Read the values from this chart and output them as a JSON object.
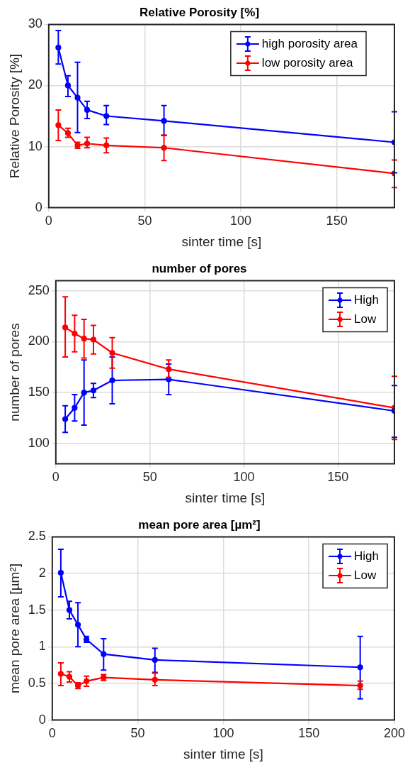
{
  "chart_data": [
    {
      "type": "line",
      "title": "Relative Porosity [%]",
      "xlabel": "sinter time [s]",
      "ylabel": "Relative Porosity [%]",
      "x": [
        5,
        10,
        15,
        20,
        30,
        60,
        180
      ],
      "xlim": [
        0,
        180
      ],
      "xticks": [
        0,
        50,
        100,
        150
      ],
      "ylim": [
        0,
        30
      ],
      "yticks": [
        0,
        10,
        20,
        30
      ],
      "grid": true,
      "legend": "top right",
      "marker": "circle",
      "line_style": "solid",
      "series": [
        {
          "name": "high porosity area",
          "color": "#0000ff",
          "values": [
            26.2,
            20,
            18,
            16,
            15,
            14.2,
            10.7
          ],
          "errors": [
            [
              23.5,
              29
            ],
            [
              18.2,
              21.6
            ],
            [
              12.3,
              23.8
            ],
            [
              14.6,
              17.4
            ],
            [
              13.6,
              16.7
            ],
            [
              11.8,
              16.7
            ],
            [
              5.7,
              15.7
            ]
          ]
        },
        {
          "name": "low porosity area",
          "color": "#ff0000",
          "values": [
            13.5,
            12.2,
            10.2,
            10.5,
            10.2,
            9.8,
            5.6
          ],
          "errors": [
            [
              11,
              16
            ],
            [
              11.5,
              13
            ],
            [
              9.7,
              10.7
            ],
            [
              9.8,
              11.5
            ],
            [
              9,
              11.4
            ],
            [
              7.7,
              11.9
            ],
            [
              3.3,
              7.8
            ]
          ]
        }
      ]
    },
    {
      "type": "line",
      "title": "number of pores",
      "xlabel": "sinter time [s]",
      "ylabel": "number of pores",
      "x": [
        5,
        10,
        15,
        20,
        30,
        60,
        180
      ],
      "xlim": [
        0,
        180
      ],
      "xticks": [
        0,
        50,
        100,
        150
      ],
      "ylim": [
        80,
        260
      ],
      "yticks": [
        100,
        150,
        200,
        250
      ],
      "grid": true,
      "legend": "top right",
      "marker": "circle",
      "line_style": "solid",
      "series": [
        {
          "name": "High",
          "color": "#0000ff",
          "values": [
            124,
            135,
            150,
            152,
            162,
            163,
            132
          ],
          "errors": [
            [
              111,
              137
            ],
            [
              122,
              148
            ],
            [
              118,
              182
            ],
            [
              145,
              159
            ],
            [
              139,
              185
            ],
            [
              148,
              178
            ],
            [
              106,
              157
            ]
          ]
        },
        {
          "name": "Low",
          "color": "#ff0000",
          "values": [
            214,
            208,
            203,
            202,
            189,
            173,
            135
          ],
          "errors": [
            [
              185,
              244
            ],
            [
              190,
              226
            ],
            [
              184,
              222
            ],
            [
              188,
              216
            ],
            [
              174,
              204
            ],
            [
              165,
              182
            ],
            [
              104,
              166
            ]
          ]
        }
      ]
    },
    {
      "type": "line",
      "title": "mean pore area [µm²]",
      "xlabel": "sinter time [s]",
      "ylabel": "mean pore area [µm²]",
      "x": [
        5,
        10,
        15,
        20,
        30,
        60,
        180
      ],
      "xlim": [
        0,
        200
      ],
      "xticks": [
        0,
        50,
        100,
        150,
        200
      ],
      "ylim": [
        0,
        2.5
      ],
      "yticks": [
        0,
        0.5,
        1,
        1.5,
        2,
        2.5
      ],
      "grid": true,
      "legend": "top right",
      "marker": "circle",
      "line_style": "solid",
      "series": [
        {
          "name": "High",
          "color": "#0000ff",
          "values": [
            2.01,
            1.5,
            1.3,
            1.1,
            0.9,
            0.82,
            0.72
          ],
          "errors": [
            [
              1.68,
              2.33
            ],
            [
              1.38,
              1.62
            ],
            [
              1.0,
              1.6
            ],
            [
              1.06,
              1.14
            ],
            [
              0.68,
              1.11
            ],
            [
              0.65,
              0.98
            ],
            [
              0.29,
              1.14
            ]
          ]
        },
        {
          "name": "Low",
          "color": "#ff0000",
          "values": [
            0.63,
            0.59,
            0.47,
            0.53,
            0.58,
            0.55,
            0.47
          ],
          "errors": [
            [
              0.47,
              0.78
            ],
            [
              0.52,
              0.66
            ],
            [
              0.43,
              0.51
            ],
            [
              0.46,
              0.6
            ],
            [
              0.54,
              0.62
            ],
            [
              0.47,
              0.64
            ],
            [
              0.42,
              0.53
            ]
          ]
        }
      ]
    }
  ]
}
